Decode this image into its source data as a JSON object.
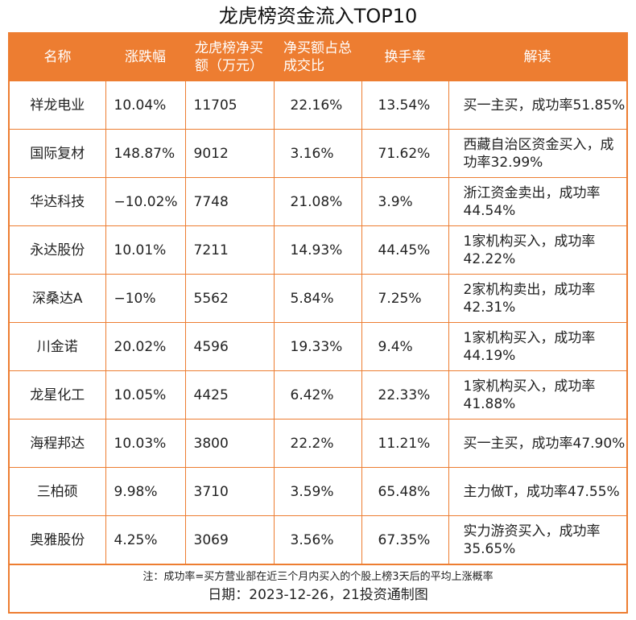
{
  "title": "龙虎榜资金流入TOP10",
  "headers": [
    "名称",
    "涨跌幅",
    "龙虎榜净买额（万元）",
    "净买额占总成交比",
    "换手率",
    "解读"
  ],
  "rows": [
    [
      "祥龙电业",
      "10.04%",
      "11705",
      "22.16%",
      "13.54%",
      "买一主买，成功率51.85%"
    ],
    [
      "国际复材",
      "148.87%",
      "9012",
      "3.16%",
      "71.62%",
      "西藏自治区资金买入，成功率32.99%"
    ],
    [
      "华达科技",
      "−10.02%",
      "7748",
      "21.08%",
      "3.9%",
      "浙江资金卖出，成功率44.54%"
    ],
    [
      "永达股份",
      "10.01%",
      "7211",
      "14.93%",
      "44.45%",
      "1家机构买入，成功率42.22%"
    ],
    [
      "深桑达A",
      "−10%",
      "5562",
      "5.84%",
      "7.25%",
      "2家机构卖出，成功率42.31%"
    ],
    [
      "川金诺",
      "20.02%",
      "4596",
      "19.33%",
      "9.4%",
      "1家机构买入，成功率44.19%"
    ],
    [
      "龙星化工",
      "10.05%",
      "4425",
      "6.42%",
      "22.33%",
      "1家机构买入，成功率41.88%"
    ],
    [
      "海程邦达",
      "10.03%",
      "3800",
      "22.2%",
      "11.21%",
      "买一主买，成功率47.90%"
    ],
    [
      "三柏硕",
      "9.98%",
      "3710",
      "3.59%",
      "65.48%",
      "主力做T，成功率47.55%"
    ],
    [
      "奥雅股份",
      "4.25%",
      "3069",
      "3.56%",
      "67.35%",
      "实力游资买入，成功率35.65%"
    ]
  ],
  "note": "注：成功率=买方营业部在近三个月内买入的个股上榜3天后的平均上涨概率",
  "date": "日期：2023-12-26，21投资通制图",
  "colors": {
    "accent": "#ED7D31"
  }
}
